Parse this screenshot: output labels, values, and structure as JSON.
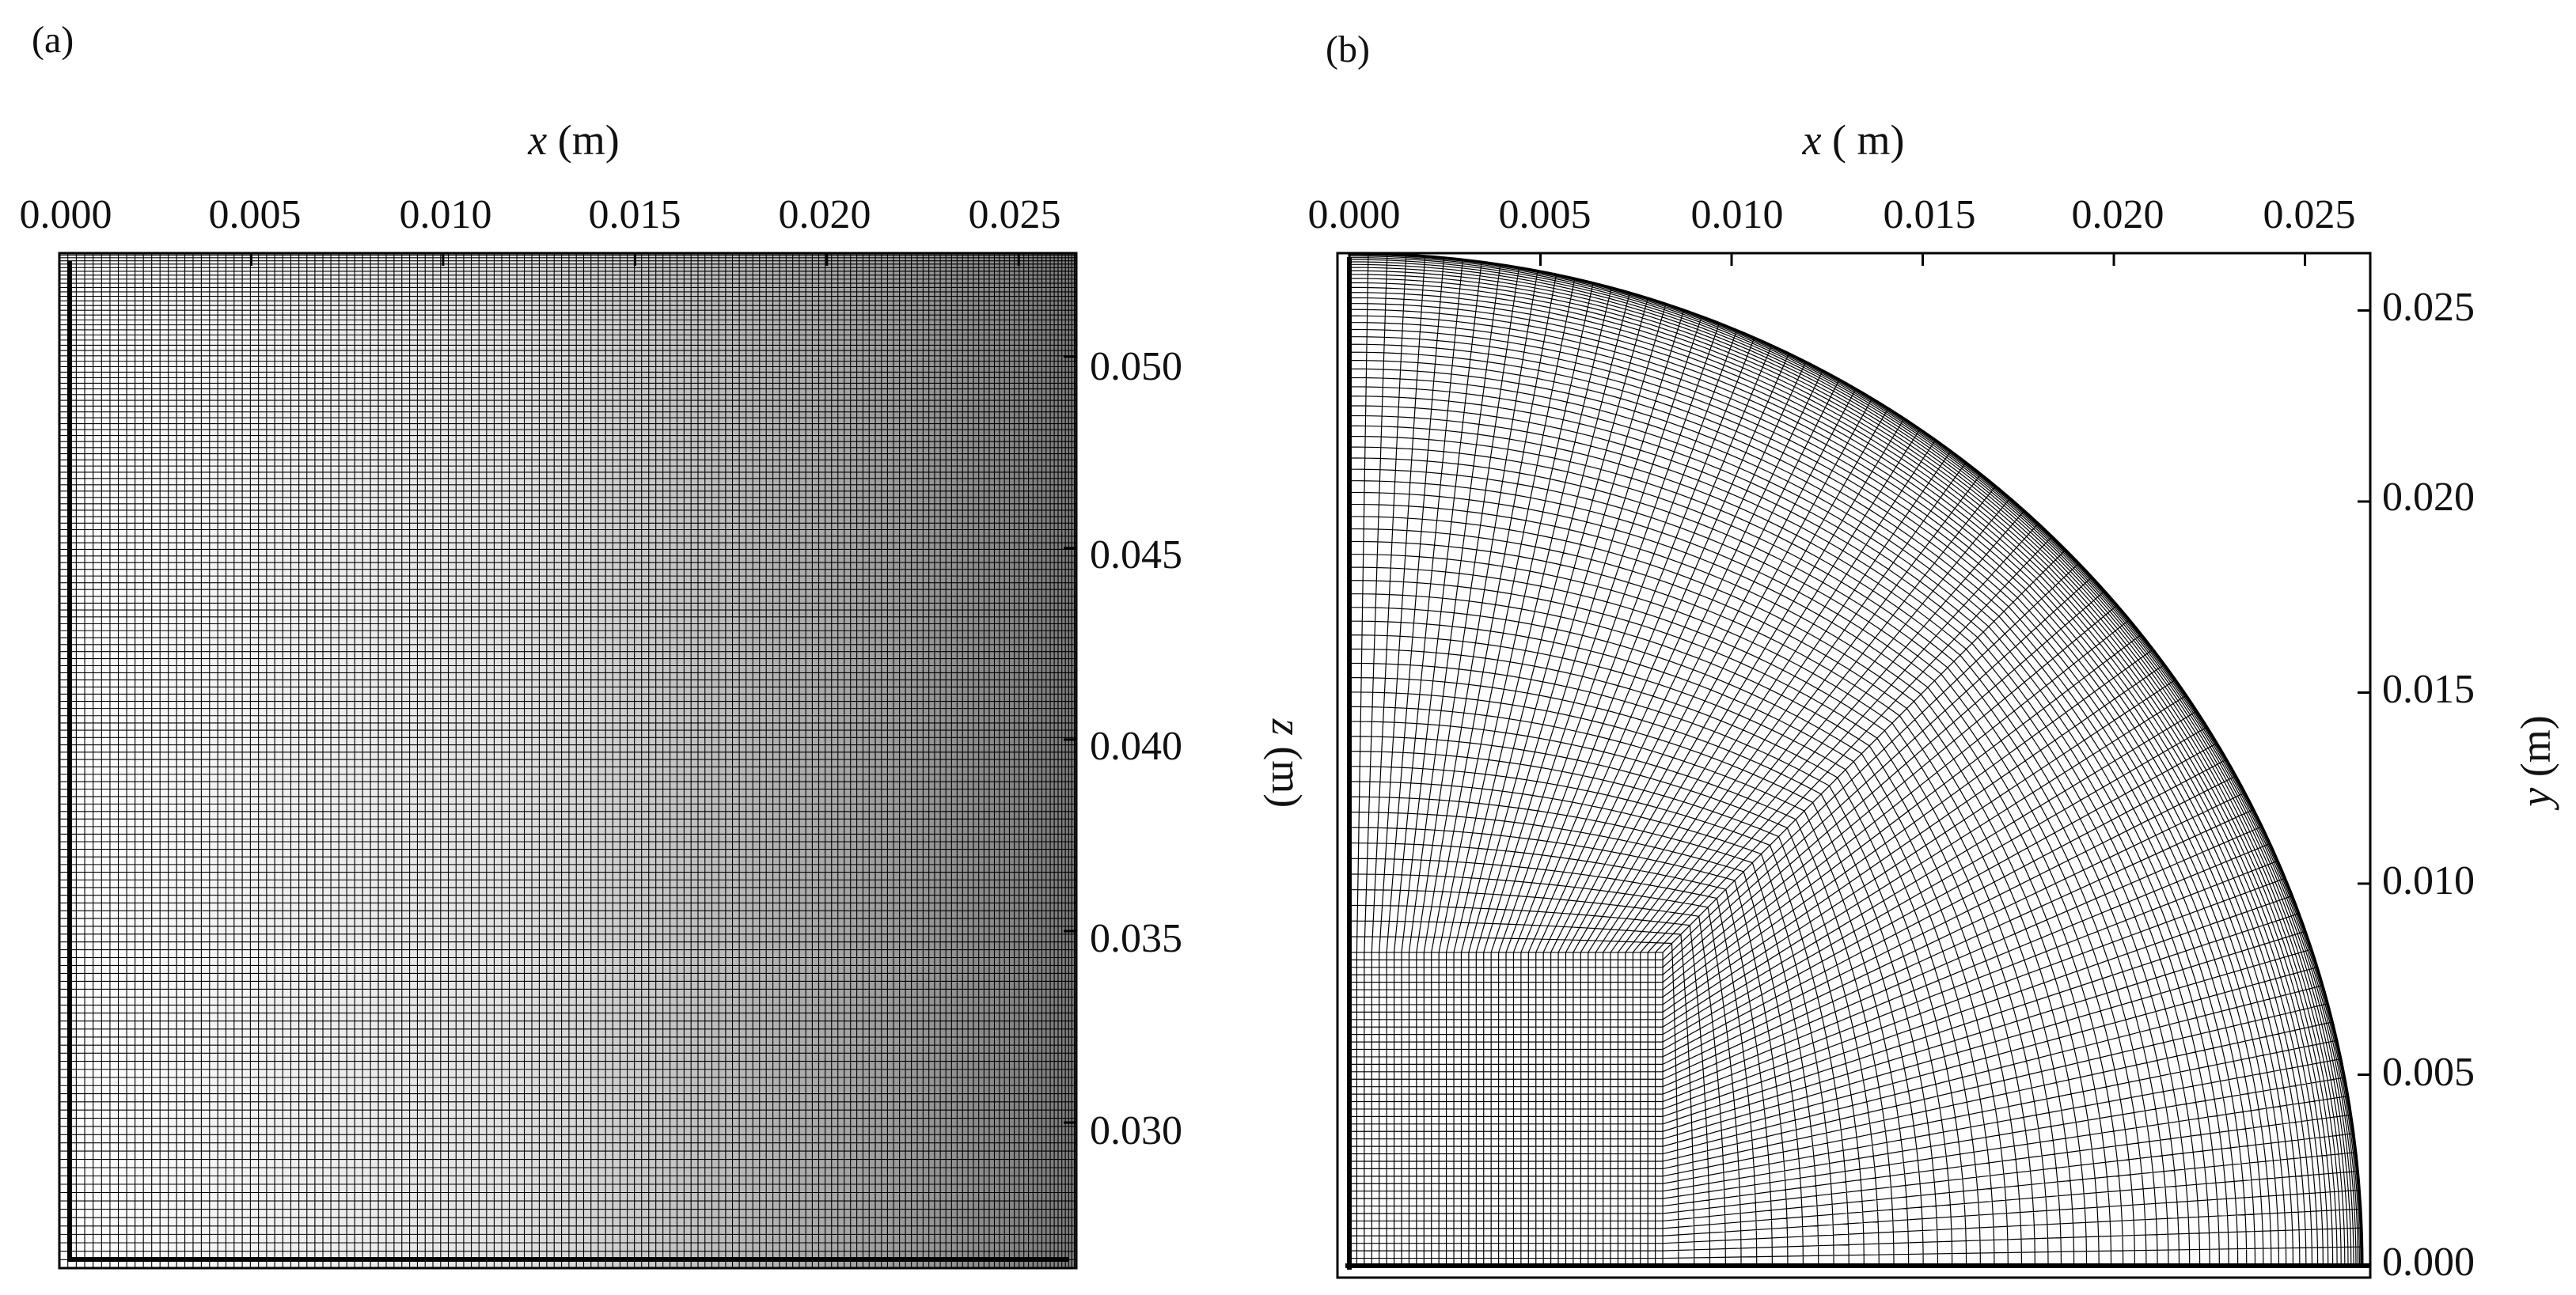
{
  "panels": [
    {
      "id": "a",
      "label": "(a)",
      "x_axis": {
        "label_var": "x",
        "label_unit": " (m)",
        "ticks": [
          "0.000",
          "0.005",
          "0.010",
          "0.015",
          "0.020",
          "0.025"
        ],
        "tick_values": [
          0,
          0.005,
          0.01,
          0.015,
          0.02,
          0.025
        ],
        "range": [
          0,
          0.0265
        ],
        "position": "top"
      },
      "y_axis": {
        "label_var": "z",
        "label_unit": " (m)",
        "ticks": [
          "0.030",
          "0.035",
          "0.040",
          "0.045",
          "0.050"
        ],
        "tick_values": [
          0.03,
          0.035,
          0.04,
          0.045,
          0.05
        ],
        "range": [
          0.0262,
          0.0527
        ],
        "position": "right"
      },
      "mesh": {
        "type": "structured-rectangular",
        "shading": "white-to-grey-gradient-along-x",
        "columns": 150,
        "rows": 150,
        "refined_near": [
          "top",
          "right"
        ]
      }
    },
    {
      "id": "b",
      "label": "(b)",
      "x_axis": {
        "label_var": "x",
        "label_unit": " ( m)",
        "ticks": [
          "0.000",
          "0.005",
          "0.010",
          "0.015",
          "0.020",
          "0.025"
        ],
        "tick_values": [
          0,
          0.005,
          0.01,
          0.015,
          0.02,
          0.025
        ],
        "range": [
          0,
          0.0265
        ],
        "position": "top"
      },
      "y_axis": {
        "label_var": "y",
        "label_unit": " (m)",
        "ticks": [
          "0.000",
          "0.005",
          "0.010",
          "0.015",
          "0.020",
          "0.025"
        ],
        "tick_values": [
          0,
          0.005,
          0.01,
          0.015,
          0.02,
          0.025
        ],
        "range": [
          0,
          0.0265
        ],
        "position": "right"
      },
      "mesh": {
        "type": "o-grid-quarter-circle",
        "radius": 0.0265,
        "core_square_size": 0.0082,
        "core_cells": 42,
        "radial_layers": 70
      }
    }
  ]
}
